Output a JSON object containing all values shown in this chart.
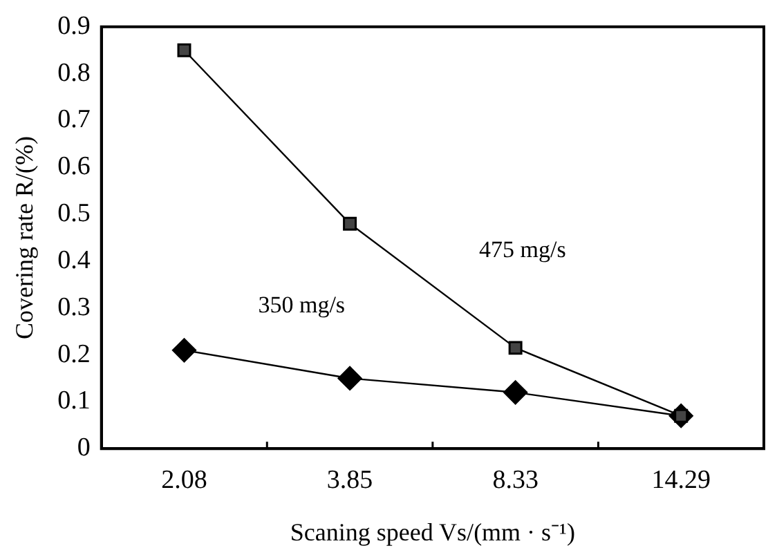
{
  "chart_data": {
    "type": "line",
    "xlabel": "Scaning speed Vs/(mm · s⁻¹)",
    "ylabel": "Covering rate R/(%)",
    "categories": [
      "2.08",
      "3.85",
      "8.33",
      "14.29"
    ],
    "series": [
      {
        "name": "475 mg/s",
        "color": "#000000",
        "marker": "square",
        "values": [
          0.85,
          0.48,
          0.215,
          0.07
        ]
      },
      {
        "name": "350 mg/s",
        "color": "#000000",
        "marker": "diamond",
        "values": [
          0.21,
          0.15,
          0.12,
          0.07
        ]
      }
    ],
    "ylim": [
      0,
      0.9
    ],
    "yticks": [
      0,
      0.1,
      0.2,
      0.3,
      0.4,
      0.5,
      0.6,
      0.7,
      0.8,
      0.9
    ],
    "grid": false,
    "legend": false,
    "line_style": "solid"
  }
}
